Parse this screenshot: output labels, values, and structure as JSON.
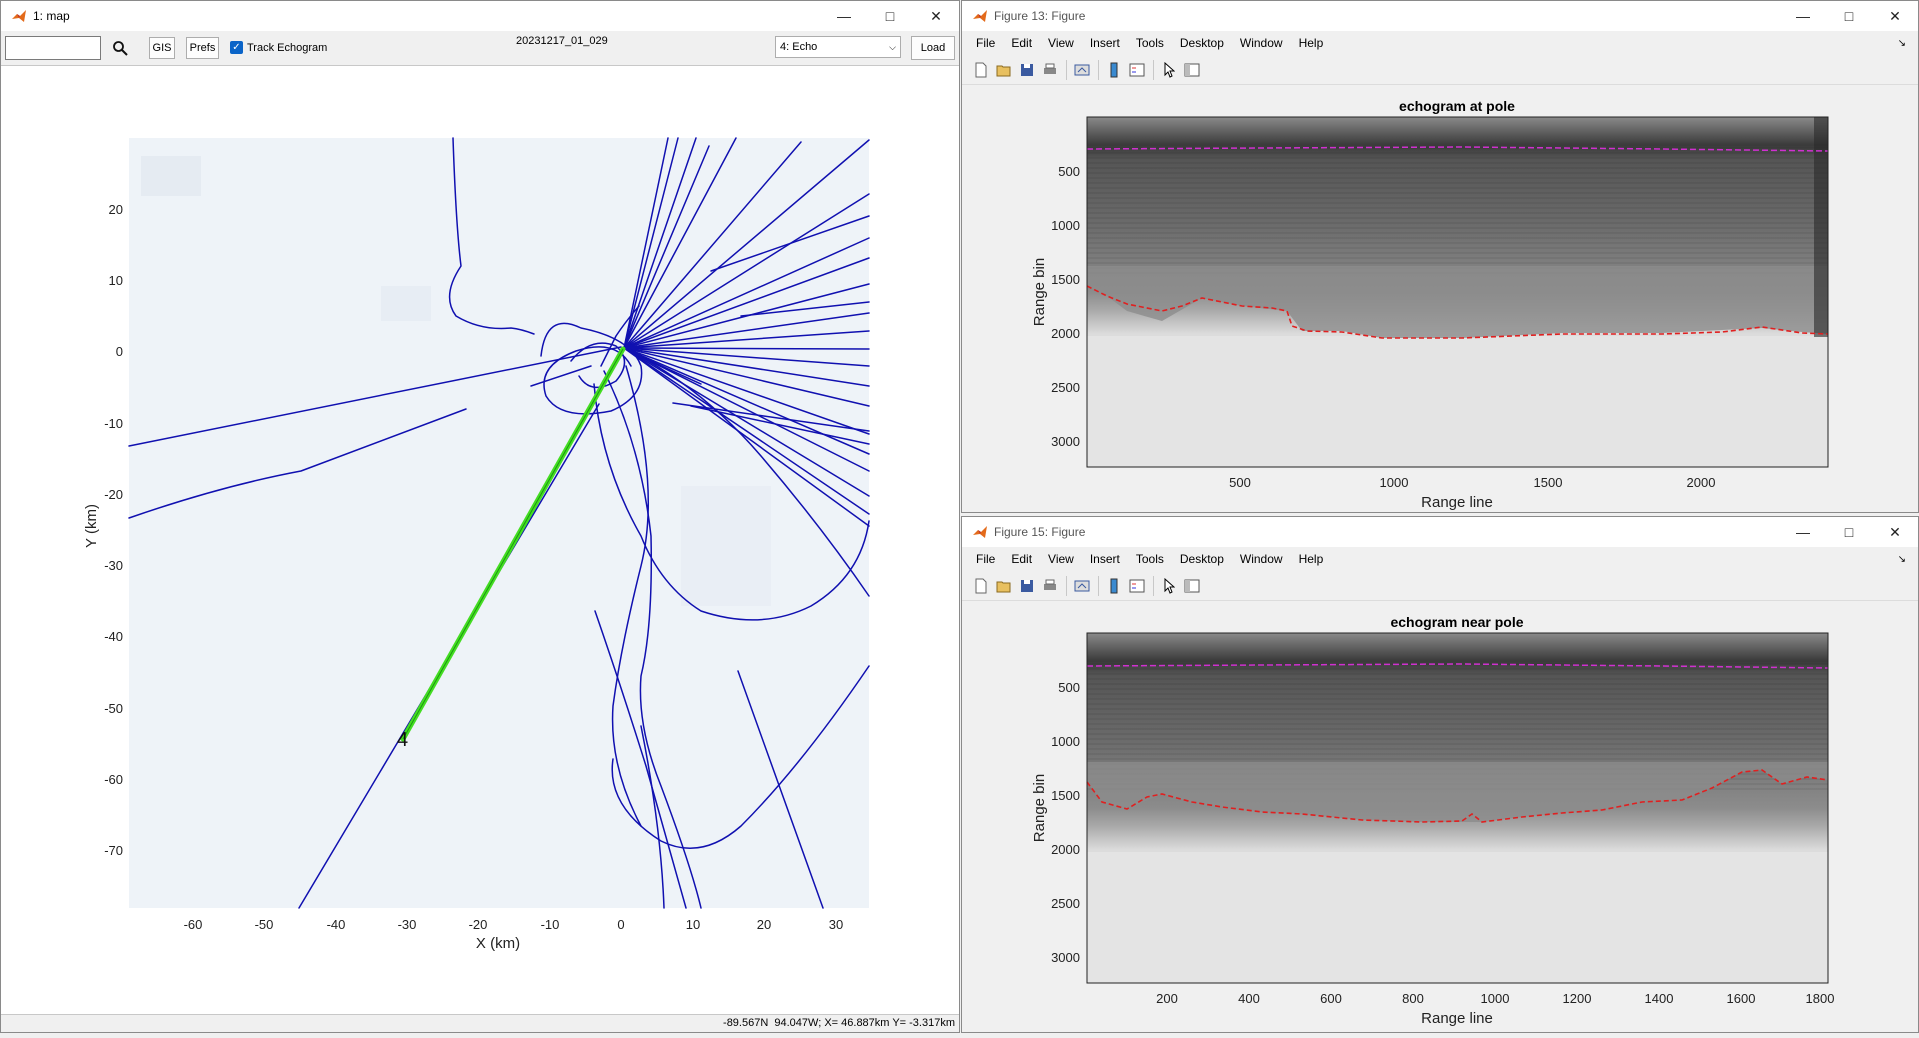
{
  "map": {
    "title": "1: map",
    "search": {
      "value": "",
      "placeholder": ""
    },
    "gis_label": "GIS",
    "prefs_label": "Prefs",
    "track_label": "Track Echogram",
    "frame_label": "20231217_01_029",
    "echo_select": "4: Echo",
    "load_label": "Load",
    "xlabel": "X (km)",
    "ylabel": "Y (km)",
    "xticks": [
      "-60",
      "-50",
      "-40",
      "-30",
      "-20",
      "-10",
      "0",
      "10",
      "20",
      "30"
    ],
    "yticks": [
      "20",
      "10",
      "0",
      "-10",
      "-20",
      "-30",
      "-40",
      "-50",
      "-60",
      "-70"
    ],
    "marker_label": "4",
    "status": "-89.567N  94.047W; X= 46.887km Y= -3.317km",
    "track_color": "#1010b0",
    "highlight_color": "#44dd22"
  },
  "fig13": {
    "title": "Figure 13: Figure",
    "menus": [
      "File",
      "Edit",
      "View",
      "Insert",
      "Tools",
      "Desktop",
      "Window",
      "Help"
    ],
    "plot_title": "echogram at pole",
    "xlabel": "Range line",
    "ylabel": "Range bin",
    "xticks": [
      "500",
      "1000",
      "1500",
      "2000"
    ],
    "yticks": [
      "500",
      "1000",
      "1500",
      "2000",
      "2500",
      "3000"
    ]
  },
  "fig15": {
    "title": "Figure 15: Figure",
    "menus": [
      "File",
      "Edit",
      "View",
      "Insert",
      "Tools",
      "Desktop",
      "Window",
      "Help"
    ],
    "plot_title": "echogram near pole",
    "xlabel": "Range line",
    "ylabel": "Range bin",
    "xticks": [
      "200",
      "400",
      "600",
      "800",
      "1000",
      "1200",
      "1400",
      "1600",
      "1800"
    ],
    "yticks": [
      "500",
      "1000",
      "1500",
      "2000",
      "2500",
      "3000"
    ]
  }
}
